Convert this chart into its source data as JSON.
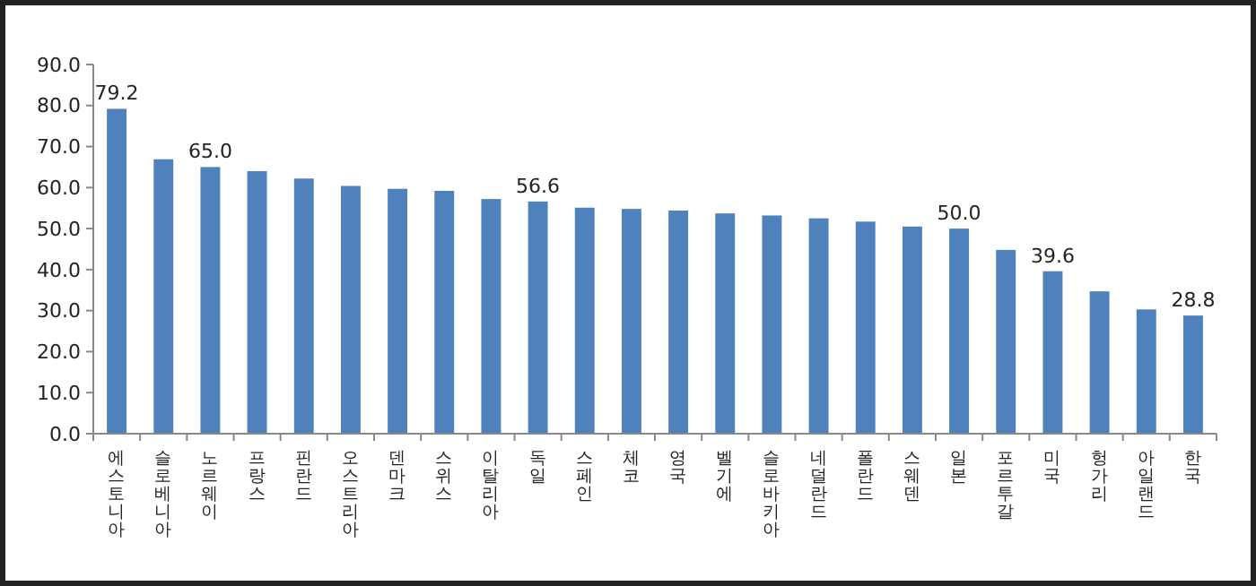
{
  "chart_data": {
    "type": "bar",
    "categories": [
      "에스토니아",
      "슬로베니아",
      "노르웨이",
      "프랑스",
      "핀란드",
      "오스트리아",
      "덴마크",
      "스위스",
      "이탈리아",
      "독일",
      "스페인",
      "체코",
      "영국",
      "벨기에",
      "슬로바키아",
      "네덜란드",
      "폴란드",
      "스웨덴",
      "일본",
      "포르투갈",
      "미국",
      "헝가리",
      "아일랜드",
      "한국"
    ],
    "values": [
      79.2,
      66.9,
      65.0,
      64.0,
      62.2,
      60.4,
      59.7,
      59.2,
      57.2,
      56.6,
      55.1,
      54.8,
      54.4,
      53.7,
      53.2,
      52.5,
      51.7,
      50.5,
      50.0,
      44.8,
      39.6,
      34.7,
      30.3,
      28.8
    ],
    "value_labels": [
      "79.2",
      null,
      "65.0",
      null,
      null,
      null,
      null,
      null,
      null,
      "56.6",
      null,
      null,
      null,
      null,
      null,
      null,
      null,
      null,
      "50.0",
      null,
      "39.6",
      null,
      null,
      "28.8"
    ],
    "color": "#4f81bd",
    "ylim": [
      0,
      90
    ],
    "yticks": [
      {
        "value": 0,
        "label": "0.0"
      },
      {
        "value": 10,
        "label": "10.0"
      },
      {
        "value": 20,
        "label": "20.0"
      },
      {
        "value": 30,
        "label": "30.0"
      },
      {
        "value": 40,
        "label": "40.0"
      },
      {
        "value": 50,
        "label": "50.0"
      },
      {
        "value": 60,
        "label": "60.0"
      },
      {
        "value": 70,
        "label": "70.0"
      },
      {
        "value": 80,
        "label": "80.0"
      },
      {
        "value": 90,
        "label": "90.0"
      }
    ],
    "grid": false
  }
}
